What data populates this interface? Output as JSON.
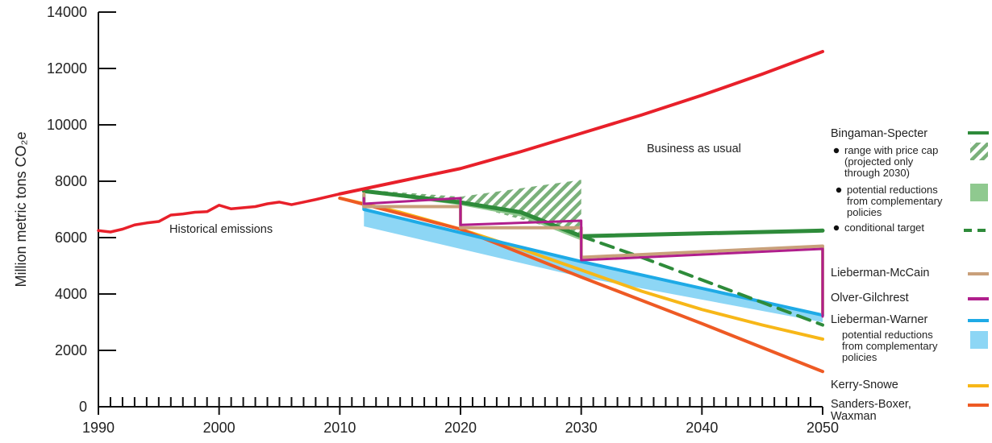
{
  "chart_data": {
    "type": "line",
    "xlim": [
      1990,
      2050
    ],
    "ylim": [
      0,
      14000
    ],
    "x_ticks": [
      1990,
      2000,
      2010,
      2020,
      2030,
      2040,
      2050
    ],
    "y_ticks": [
      0,
      2000,
      4000,
      6000,
      8000,
      10000,
      12000,
      14000
    ],
    "ylabel": "Million metric tons CO₂e",
    "grid": false,
    "legend": "right",
    "annotations": {
      "historical": "Historical emissions",
      "bau": "Business as usual"
    },
    "colors": {
      "historical": "#e8202a",
      "bingaman": "#2e8b3a",
      "bingaman_light": "#8fc98f",
      "mccain": "#c9a07a",
      "olver": "#b01e8c",
      "warner": "#1eaae6",
      "warner_light": "#8dd6f5",
      "kerry": "#f7b718",
      "sanders": "#ee5a24"
    },
    "series": [
      {
        "name": "Historical emissions",
        "key": "historical",
        "x": [
          1990,
          1991,
          1992,
          1993,
          1994,
          1995,
          1996,
          1997,
          1998,
          1999,
          2000,
          2001,
          2002,
          2003,
          2004,
          2005,
          2006,
          2007,
          2008,
          2009,
          2010
        ],
        "y": [
          6250,
          6200,
          6300,
          6450,
          6520,
          6570,
          6800,
          6840,
          6900,
          6920,
          7150,
          7020,
          7060,
          7100,
          7200,
          7260,
          7170,
          7260,
          7350,
          7450,
          7550
        ]
      },
      {
        "name": "Business as usual",
        "key": "bau",
        "x": [
          2010,
          2015,
          2020,
          2025,
          2030,
          2035,
          2040,
          2045,
          2050
        ],
        "y": [
          7550,
          8000,
          8450,
          9050,
          9700,
          10350,
          11050,
          11800,
          12600
        ]
      },
      {
        "name": "Bingaman-Specter",
        "key": "bingaman",
        "x": [
          2012,
          2020,
          2025,
          2030,
          2050
        ],
        "y": [
          7650,
          7250,
          6900,
          6050,
          6250
        ]
      },
      {
        "name": "Lieberman-McCain",
        "key": "mccain",
        "x": [
          2012,
          2012,
          2020,
          2020,
          2030,
          2030,
          2050,
          2050
        ],
        "y": [
          7550,
          7100,
          7100,
          6350,
          6350,
          5300,
          5700,
          3300
        ]
      },
      {
        "name": "Olver-Gilchrest",
        "key": "olver",
        "x": [
          2012,
          2012,
          2020,
          2020,
          2030,
          2030,
          2050,
          2050
        ],
        "y": [
          7400,
          7200,
          7400,
          6450,
          6600,
          5200,
          5600,
          3200
        ]
      },
      {
        "name": "Lieberman-Warner",
        "key": "warner",
        "x": [
          2012,
          2012,
          2030,
          2050
        ],
        "y": [
          7500,
          7000,
          5150,
          3250
        ]
      },
      {
        "name": "Kerry-Snowe",
        "key": "kerry",
        "x": [
          2010,
          2015,
          2020,
          2025,
          2030,
          2035,
          2040,
          2045,
          2050
        ],
        "y": [
          7400,
          6900,
          6300,
          5600,
          4850,
          4100,
          3450,
          2900,
          2400
        ]
      },
      {
        "name": "Sanders-Boxer, Waxman",
        "key": "sanders",
        "x": [
          2010,
          2020,
          2030,
          2040,
          2050
        ],
        "y": [
          7400,
          6300,
          4600,
          2950,
          1250
        ]
      },
      {
        "name": "conditional target",
        "key": "conditional",
        "x": [
          2030,
          2035,
          2040,
          2045,
          2050
        ],
        "y": [
          6050,
          5300,
          4500,
          3700,
          2900
        ]
      }
    ],
    "bands": {
      "price_cap": {
        "x": [
          2012,
          2020,
          2030
        ],
        "upper": [
          7700,
          7450,
          8050
        ],
        "lower": [
          7650,
          7250,
          6050
        ]
      },
      "bingaman_complementary": {
        "x": [
          2012,
          2020,
          2025,
          2030
        ],
        "upper": [
          7650,
          7250,
          6900,
          6050
        ],
        "lower": [
          7600,
          7150,
          6750,
          5900
        ]
      },
      "warner_complementary": {
        "x": [
          2012,
          2030,
          2050
        ],
        "upper": [
          7000,
          5150,
          3250
        ],
        "lower": [
          6400,
          4600,
          3000
        ]
      }
    },
    "legend_items": {
      "bingaman": "Bingaman-Specter",
      "price_cap_1": "range with price cap",
      "price_cap_2": "(projected only",
      "price_cap_3": "through 2030)",
      "bing_comp_1": "potential reductions",
      "bing_comp_2": "from complementary",
      "bing_comp_3": "policies",
      "conditional": "conditional target",
      "mccain": "Lieberman-McCain",
      "olver": "Olver-Gilchrest",
      "warner": "Lieberman-Warner",
      "warner_comp_1": "potential reductions",
      "warner_comp_2": "from complementary",
      "warner_comp_3": "policies",
      "kerry": "Kerry-Snowe",
      "sanders_1": "Sanders-Boxer,",
      "sanders_2": "Waxman"
    }
  }
}
